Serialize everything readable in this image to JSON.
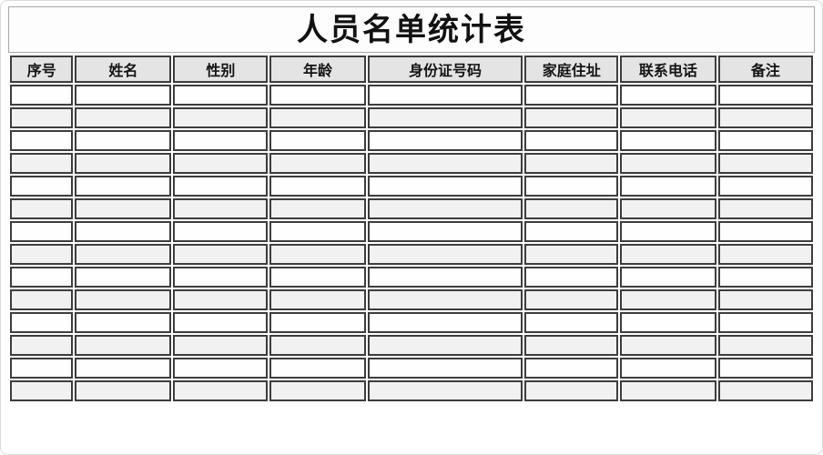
{
  "page": {
    "title": "人员名单统计表"
  },
  "table": {
    "columns": [
      "序号",
      "姓名",
      "性别",
      "年龄",
      "身份证号码",
      "家庭住址",
      "联系电话",
      "备注"
    ],
    "row_count": 14,
    "rows": [
      [
        "",
        "",
        "",
        "",
        "",
        "",
        "",
        ""
      ],
      [
        "",
        "",
        "",
        "",
        "",
        "",
        "",
        ""
      ],
      [
        "",
        "",
        "",
        "",
        "",
        "",
        "",
        ""
      ],
      [
        "",
        "",
        "",
        "",
        "",
        "",
        "",
        ""
      ],
      [
        "",
        "",
        "",
        "",
        "",
        "",
        "",
        ""
      ],
      [
        "",
        "",
        "",
        "",
        "",
        "",
        "",
        ""
      ],
      [
        "",
        "",
        "",
        "",
        "",
        "",
        "",
        ""
      ],
      [
        "",
        "",
        "",
        "",
        "",
        "",
        "",
        ""
      ],
      [
        "",
        "",
        "",
        "",
        "",
        "",
        "",
        ""
      ],
      [
        "",
        "",
        "",
        "",
        "",
        "",
        "",
        ""
      ],
      [
        "",
        "",
        "",
        "",
        "",
        "",
        "",
        ""
      ],
      [
        "",
        "",
        "",
        "",
        "",
        "",
        "",
        ""
      ],
      [
        "",
        "",
        "",
        "",
        "",
        "",
        "",
        ""
      ],
      [
        "",
        "",
        "",
        "",
        "",
        "",
        "",
        ""
      ]
    ],
    "colors": {
      "header_bg": "#e4e4e4",
      "row_bg": "#fefefe",
      "row_alt_bg": "#f1f1f1",
      "cell_border": "#3d3d3d",
      "title_border": "#a8a8a8",
      "text": "#141414"
    }
  }
}
